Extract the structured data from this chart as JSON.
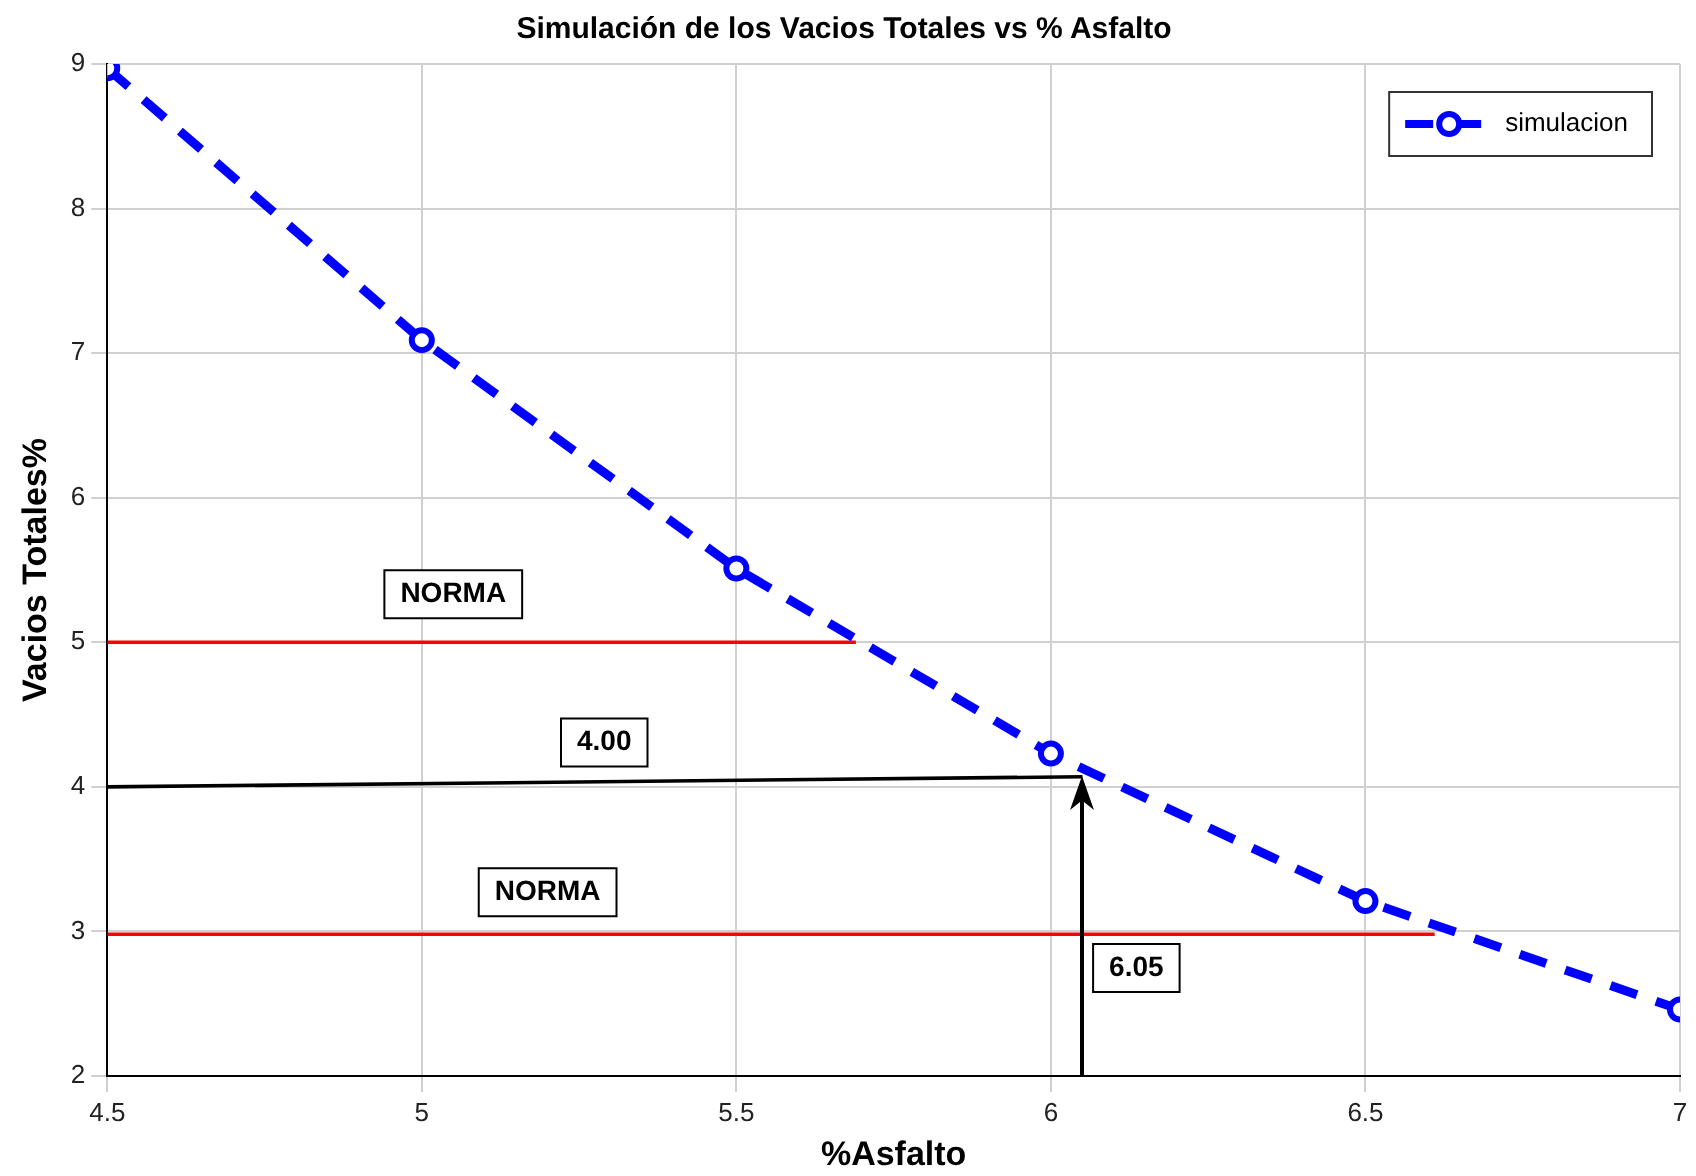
{
  "chart_data": {
    "type": "line",
    "title": "Simulación de los Vacios Totales vs % Asfalto",
    "xlabel": "%Asfalto",
    "ylabel": "Vacios Totales%",
    "xlim": [
      4.5,
      7
    ],
    "xticks": [
      4.5,
      5,
      5.5,
      6,
      6.5,
      7
    ],
    "ylim": [
      2,
      9
    ],
    "yticks": [
      2,
      3,
      4,
      5,
      6,
      7,
      8,
      9
    ],
    "grid": true,
    "legend": "top right",
    "series": [
      {
        "name": "simulacion",
        "color": "#0000ff",
        "x": [
          4.5,
          5,
          5.5,
          6,
          6.5,
          7
        ],
        "values": [
          8.97,
          7.09,
          5.51,
          4.23,
          3.21,
          2.46
        ],
        "marker": "circle",
        "line_style": "dashed"
      },
      {
        "color": "#ff0000",
        "x": [
          4.5,
          5.69
        ],
        "values": [
          5,
          5
        ],
        "marker": "none",
        "line_style": "solid"
      },
      {
        "color": "#ff0000",
        "x": [
          4.5,
          6.61
        ],
        "values": [
          2.98,
          2.98
        ],
        "marker": "none",
        "line_style": "solid"
      },
      {
        "color": "#000000",
        "x": [
          4.5,
          6.05
        ],
        "values": [
          4.0,
          4.07
        ],
        "marker": "none",
        "line_style": "solid"
      }
    ],
    "annotations": [
      {
        "text": "NORMA",
        "x": 5.05,
        "y": 5
      },
      {
        "text": "4.00",
        "x": 5.29,
        "y": 4.03
      },
      {
        "text": "NORMA",
        "x": 5.2,
        "y": 2.98
      },
      "6.05"
    ]
  }
}
